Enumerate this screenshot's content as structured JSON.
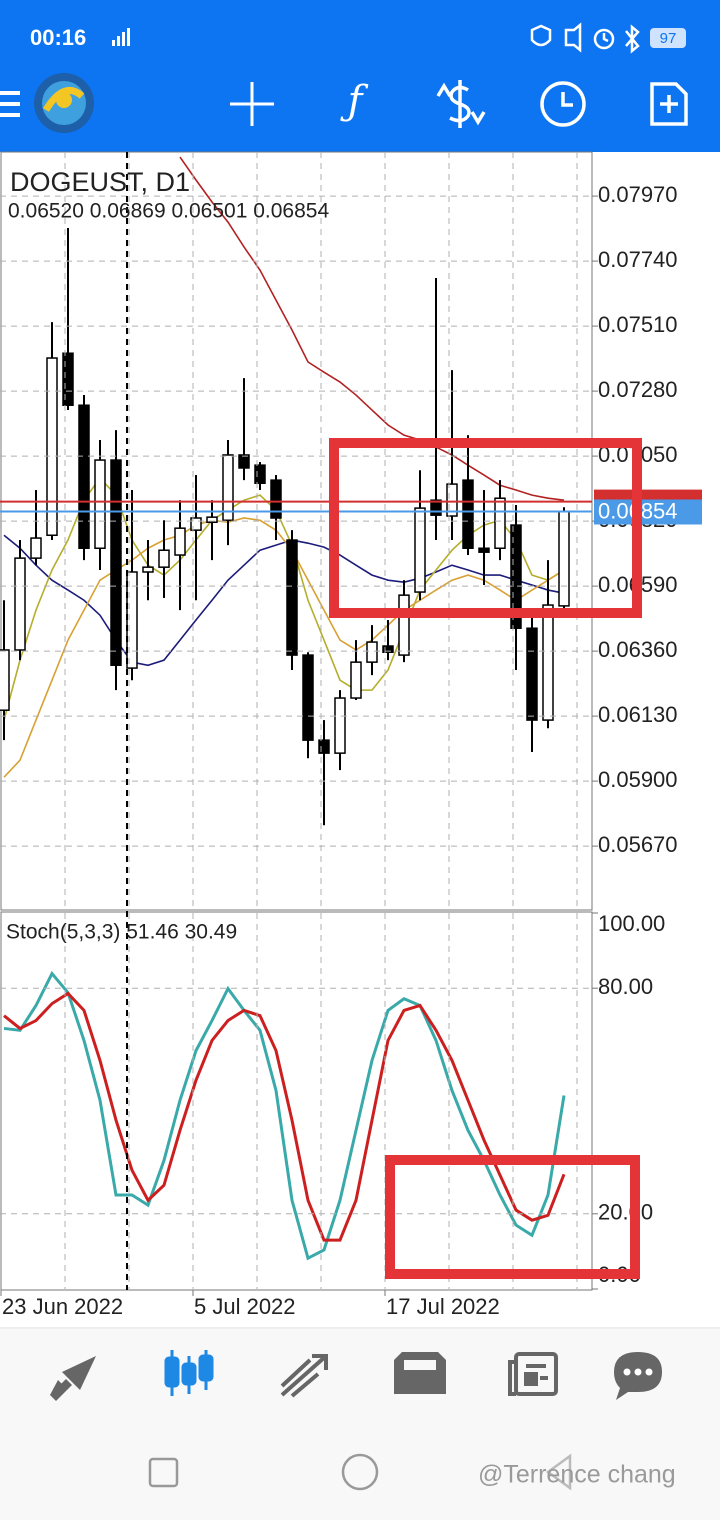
{
  "status_bar": {
    "time": "00:16",
    "battery": "97"
  },
  "watermark": "@Terrence chang",
  "chart_data": [
    {
      "type": "candlestick",
      "title": "DOGEUST, D1",
      "ohlc_label": "0.06520 0.06869 0.06501 0.06854",
      "categories": [
        "23 Jun 2022",
        null,
        null,
        null,
        null,
        null,
        null,
        null,
        null,
        null,
        null,
        null,
        "5 Jul 2022",
        null,
        null,
        null,
        null,
        null,
        null,
        null,
        null,
        null,
        null,
        null,
        "17 Jul 2022",
        null,
        null,
        null,
        null,
        null,
        null,
        null,
        null,
        null,
        null,
        null
      ],
      "open": [
        0.06151,
        0.06364,
        0.06689,
        0.0677,
        0.07414,
        0.0723,
        0.06724,
        0.07036,
        0.063,
        0.0664,
        0.06657,
        0.067,
        0.06788,
        0.06816,
        0.06823,
        0.07054,
        0.07018,
        0.06965,
        0.06753,
        0.06346,
        0.06045,
        0.05999,
        0.06194,
        0.06321,
        0.06378,
        0.06346,
        0.06569,
        0.06894,
        0.06838,
        0.06965,
        0.06724,
        0.06724,
        0.06806,
        0.06441,
        0.06116,
        0.0652
      ],
      "high": [
        0.0654,
        0.06753,
        0.0693,
        0.07524,
        0.07857,
        0.07266,
        0.07107,
        0.07142,
        0.0693,
        0.06753,
        0.06823,
        0.06894,
        0.06983,
        0.06894,
        0.07107,
        0.07326,
        0.07029,
        0.06983,
        0.06788,
        0.06356,
        0.06116,
        0.06222,
        0.06399,
        0.06452,
        0.0647,
        0.06611,
        0.07,
        0.0768,
        0.07354,
        0.07124,
        0.0693,
        0.06965,
        0.06877,
        0.06505,
        0.06682,
        0.06869
      ],
      "low": [
        0.06045,
        0.06328,
        0.06664,
        0.06753,
        0.07213,
        0.06682,
        0.06647,
        0.06222,
        0.06257,
        0.0654,
        0.06548,
        0.06505,
        0.0654,
        0.06682,
        0.06735,
        0.06965,
        0.0693,
        0.06753,
        0.06293,
        0.05981,
        0.05744,
        0.05939,
        0.06187,
        0.06275,
        0.06328,
        0.06321,
        0.0654,
        0.06753,
        0.06753,
        0.067,
        0.06594,
        0.06682,
        0.06293,
        0.06003,
        0.06087,
        0.06501
      ],
      "close": [
        0.06364,
        0.06689,
        0.0676,
        0.07397,
        0.0723,
        0.06724,
        0.07036,
        0.0631,
        0.0664,
        0.06657,
        0.06717,
        0.06795,
        0.06831,
        0.06834,
        0.07054,
        0.07008,
        0.06954,
        0.06831,
        0.06346,
        0.06045,
        0.05999,
        0.06194,
        0.06321,
        0.06392,
        0.06356,
        0.06558,
        0.06866,
        0.06841,
        0.06951,
        0.06724,
        0.0671,
        0.06901,
        0.06441,
        0.06116,
        0.06523,
        0.06854
      ],
      "candle_colors": {
        "up": "#ffffff",
        "down": "#000000",
        "outline": "#000000"
      },
      "series": [
        {
          "color": "#b22222",
          "values": [
            null,
            null,
            null,
            null,
            null,
            null,
            null,
            null,
            null,
            null,
            null,
            0.08108,
            0.08027,
            0.07949,
            0.07878,
            0.0779,
            0.07708,
            0.07602,
            0.07496,
            0.07383,
            0.07347,
            0.07312,
            0.07266,
            0.07213,
            0.0716,
            0.07124,
            0.07107,
            0.07082,
            0.07054,
            0.07018,
            0.06983,
            0.06947,
            0.0693,
            0.06912,
            0.06901,
            0.06894
          ]
        },
        {
          "color": "#1c1c7a",
          "values": [
            0.0677,
            0.06724,
            0.06664,
            0.06611,
            0.06576,
            0.0654,
            0.06487,
            0.06399,
            0.06321,
            0.0631,
            0.06328,
            0.06399,
            0.0647,
            0.0654,
            0.06611,
            0.06664,
            0.06717,
            0.06735,
            0.06753,
            0.06742,
            0.06728,
            0.067,
            0.06664,
            0.06629,
            0.06611,
            0.06604,
            0.06618,
            0.0664,
            0.06664,
            0.06647,
            0.06629,
            0.06629,
            0.06611,
            0.06594,
            0.06576,
            0.06565
          ]
        },
        {
          "color": "#b5ad2c",
          "values": [
            0.06116,
            0.06328,
            0.06505,
            0.06647,
            0.06753,
            0.06894,
            0.06972,
            0.06912,
            0.06753,
            0.06664,
            0.06629,
            0.06682,
            0.06753,
            0.06823,
            0.06859,
            0.06894,
            0.06912,
            0.06859,
            0.06735,
            0.0654,
            0.06399,
            0.06257,
            0.06222,
            0.06222,
            0.06293,
            0.06434,
            0.06576,
            0.06647,
            0.06717,
            0.0677,
            0.06806,
            0.06823,
            0.06753,
            0.06629,
            0.06611,
            0.06647
          ]
        },
        {
          "color": "#d9a033",
          "values": [
            0.05914,
            0.05974,
            0.06116,
            0.06257,
            0.06399,
            0.06505,
            0.06611,
            0.06647,
            0.06682,
            0.06724,
            0.06753,
            0.0677,
            0.06806,
            0.06823,
            0.06816,
            0.06831,
            0.06823,
            0.06788,
            0.06717,
            0.06611,
            0.06505,
            0.06399,
            0.06364,
            0.06399,
            0.06452,
            0.06505,
            0.0654,
            0.06576,
            0.06611,
            0.06629,
            0.06611,
            0.06576,
            0.0654,
            0.06576,
            0.06611,
            0.06647
          ]
        }
      ],
      "bid": 0.06854,
      "bid_color": "#4a9ae8",
      "ask": 0.06889,
      "ask_color": "#d32f2f",
      "ylim": [
        0.05444,
        0.08126
      ],
      "yticks": [
        {
          "value": 0.0797,
          "label": "0.07970"
        },
        {
          "value": 0.0774,
          "label": "0.07740"
        },
        {
          "value": 0.0751,
          "label": "0.07510"
        },
        {
          "value": 0.0728,
          "label": "0.07280"
        },
        {
          "value": 0.0705,
          "label": "0.07050"
        },
        {
          "value": 0.0682,
          "label": "0.06820"
        },
        {
          "value": 0.0659,
          "label": "0.06590"
        },
        {
          "value": 0.0636,
          "label": "0.06360"
        },
        {
          "value": 0.0613,
          "label": "0.06130"
        },
        {
          "value": 0.059,
          "label": "0.05900"
        },
        {
          "value": 0.0567,
          "label": "0.05670"
        }
      ],
      "grid": true
    },
    {
      "type": "line",
      "title": "Stoch(5,3,3) 51.46 30.49",
      "series": [
        {
          "color": "#3aa9a9",
          "values": [
            69.3,
            68.8,
            75.4,
            83.9,
            78.8,
            66.1,
            50.2,
            25.0,
            25.0,
            22.3,
            34.2,
            50.2,
            63.4,
            71.4,
            79.9,
            74.1,
            68.8,
            52.8,
            23.6,
            8.2,
            10.4,
            23.6,
            42.2,
            60.8,
            74.1,
            77.2,
            75.4,
            66.1,
            52.8,
            42.2,
            34.2,
            25.0,
            17.0,
            14.3,
            25.0,
            51.46
          ]
        },
        {
          "color": "#cc2020",
          "values": [
            72.7,
            69.3,
            71.4,
            75.9,
            78.6,
            74.1,
            60.8,
            44.9,
            31.6,
            23.6,
            27.6,
            42.2,
            55.5,
            66.1,
            71.4,
            74.1,
            72.7,
            63.4,
            44.9,
            23.6,
            13.0,
            13.0,
            23.6,
            44.9,
            66.1,
            74.1,
            75.4,
            68.8,
            60.8,
            50.2,
            39.6,
            30.3,
            21.0,
            18.3,
            19.6,
            30.49
          ]
        }
      ],
      "ylim": [
        0,
        100
      ],
      "yticks": [
        {
          "value": 100,
          "label": "100.00"
        },
        {
          "value": 80,
          "label": "80.00"
        },
        {
          "value": 20,
          "label": "20.00"
        },
        {
          "value": 0,
          "label": "0.00"
        }
      ],
      "grid_ticks": [
        1,
        2
      ]
    }
  ]
}
